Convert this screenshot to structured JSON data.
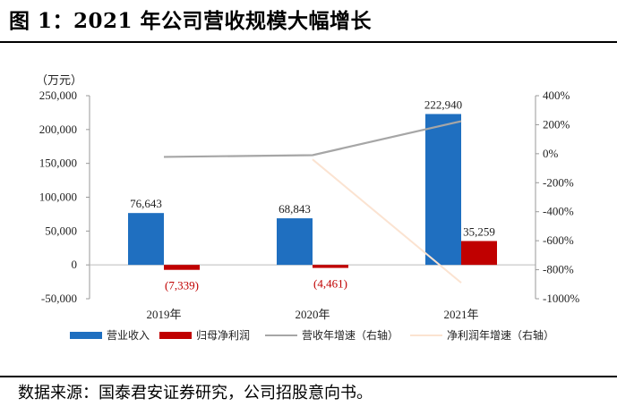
{
  "figure": {
    "title": "图 1：2021 年公司营收规模大幅增长",
    "source": "数据来源：国泰君安证券研究，公司招股意向书。"
  },
  "chart_data": {
    "type": "bar",
    "unit_label": "（万元）",
    "categories": [
      "2019年",
      "2020年",
      "2021年"
    ],
    "ylim": [
      -50000,
      250000
    ],
    "y_ticks": [
      -50000,
      0,
      50000,
      100000,
      150000,
      200000,
      250000
    ],
    "y_tick_labels": [
      "-50,000",
      "0",
      "50,000",
      "100,000",
      "150,000",
      "200,000",
      "250,000"
    ],
    "y2lim": [
      -1000,
      400
    ],
    "y2_ticks": [
      -1000,
      -800,
      -600,
      -400,
      -200,
      0,
      200,
      400
    ],
    "y2_tick_labels": [
      "-1000%",
      "-800%",
      "-600%",
      "-400%",
      "-200%",
      "0%",
      "200%",
      "400%"
    ],
    "series": [
      {
        "name": "营业收入",
        "kind": "bar",
        "axis": "left",
        "color": "#1f6fc0",
        "values": [
          76643,
          68843,
          222940
        ],
        "labels": [
          "76,643",
          "68,843",
          "222,940"
        ],
        "label_color": "#222222"
      },
      {
        "name": "归母净利润",
        "kind": "bar",
        "axis": "left",
        "color": "#c00000",
        "values": [
          -7339,
          -4461,
          35259
        ],
        "labels": [
          "(7,339)",
          "(4,461)",
          "35,259"
        ],
        "label_colors": [
          "#c00000",
          "#c00000",
          "#222222"
        ]
      },
      {
        "name": "营收年增速（右轴）",
        "kind": "line",
        "axis": "right",
        "color": "#a6a6a6",
        "values": [
          -22,
          -10,
          224
        ]
      },
      {
        "name": "净利润年增速（右轴）",
        "kind": "line",
        "axis": "right",
        "color": "#fbe3d1",
        "values": [
          null,
          -39,
          -890
        ]
      }
    ],
    "legend_position": "bottom",
    "grid": false
  }
}
